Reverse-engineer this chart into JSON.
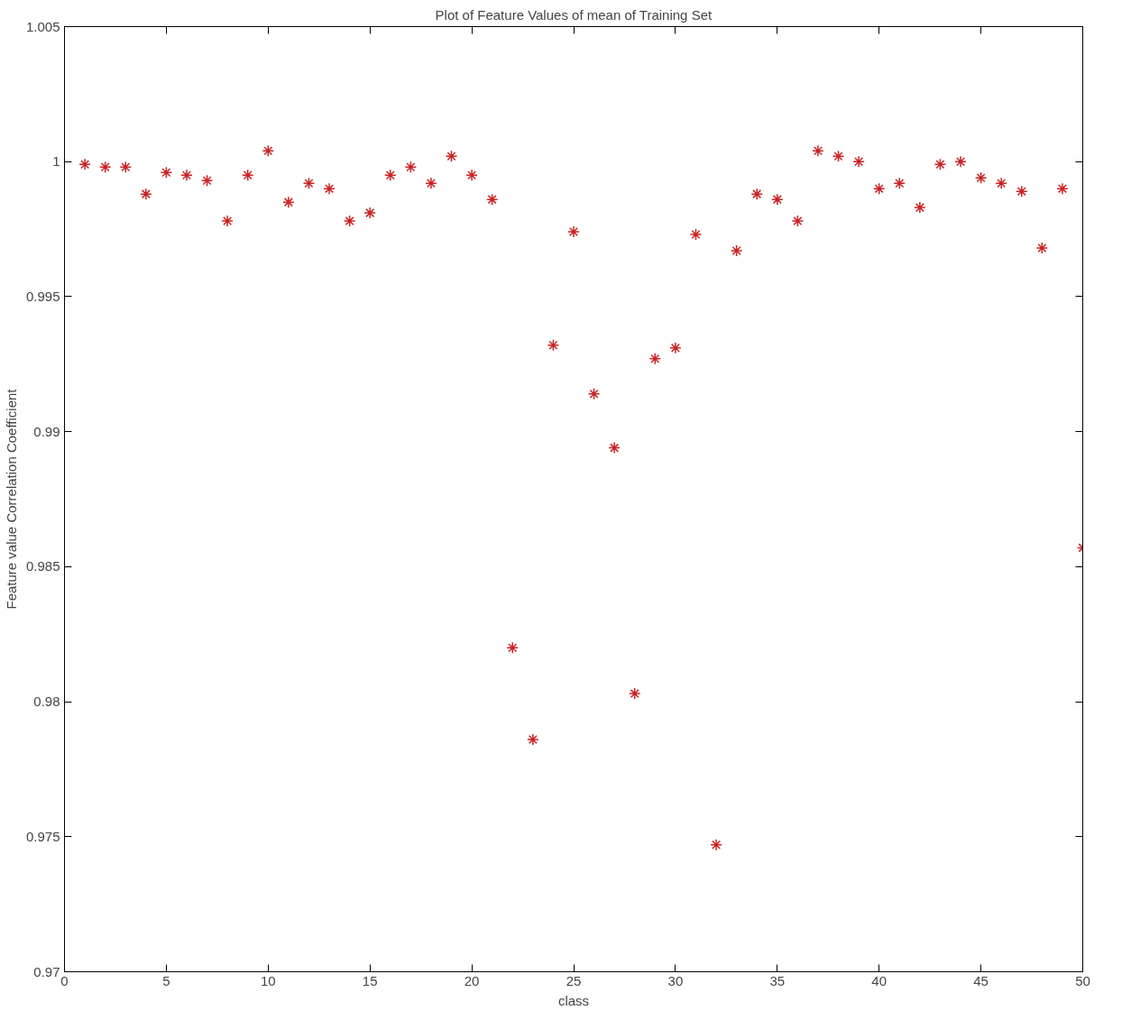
{
  "chart_data": {
    "type": "scatter",
    "title": "Plot of Feature Values of mean of Training Set",
    "xlabel": "class",
    "ylabel": "Feature value Correlation Coefficient",
    "x": [
      1,
      2,
      3,
      4,
      5,
      6,
      7,
      8,
      9,
      10,
      11,
      12,
      13,
      14,
      15,
      16,
      17,
      18,
      19,
      20,
      21,
      22,
      23,
      24,
      25,
      26,
      27,
      28,
      29,
      30,
      31,
      32,
      33,
      34,
      35,
      36,
      37,
      38,
      39,
      40,
      41,
      42,
      43,
      44,
      45,
      46,
      47,
      48,
      49,
      50
    ],
    "series": [
      {
        "color": "#cc2222",
        "values": [
          0.9999,
          0.9998,
          0.9998,
          0.9988,
          0.9996,
          0.9995,
          0.9993,
          0.9978,
          0.9995,
          1.0004,
          0.9985,
          0.9992,
          0.999,
          0.9978,
          0.9981,
          0.9995,
          0.9998,
          0.9992,
          1.0002,
          0.9995,
          0.9986,
          0.982,
          0.9786,
          0.9932,
          0.9974,
          0.9914,
          0.9894,
          0.9803,
          0.9927,
          0.9931,
          0.9973,
          0.9747,
          0.9967,
          0.9988,
          0.9986,
          0.9978,
          1.0004,
          1.0002,
          1.0,
          0.999,
          0.9992,
          0.9983,
          0.9999,
          1.0,
          0.9994,
          0.9992,
          0.9989,
          0.9968,
          0.999,
          0.9857
        ]
      }
    ],
    "xlim": [
      0,
      50
    ],
    "ylim": [
      0.97,
      1.005
    ],
    "xticks": [
      0,
      5,
      10,
      15,
      20,
      25,
      30,
      35,
      40,
      45,
      50
    ],
    "yticks": [
      0.97,
      0.975,
      0.98,
      0.985,
      0.99,
      0.995,
      {
        "value": 1,
        "label": "1"
      },
      1.005
    ],
    "marker": "cross",
    "grid": false
  }
}
